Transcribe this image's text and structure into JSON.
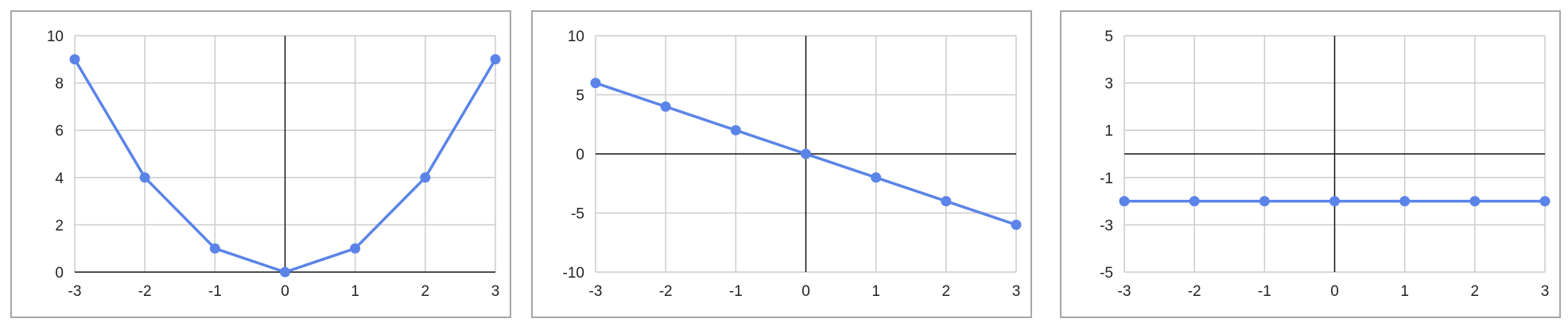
{
  "chart_data": [
    {
      "type": "line",
      "x": [
        -3,
        -2,
        -1,
        0,
        1,
        2,
        3
      ],
      "series": [
        {
          "values": [
            9,
            4,
            1,
            0,
            1,
            4,
            9
          ]
        }
      ],
      "xlim": [
        -3,
        3
      ],
      "ylim": [
        0,
        10
      ],
      "x_ticks": [
        -3,
        -2,
        -1,
        0,
        1,
        2,
        3
      ],
      "y_ticks": [
        0,
        2,
        4,
        6,
        8,
        10
      ],
      "grid": true,
      "color": "#5b84e8",
      "title": "",
      "xlabel": "",
      "ylabel": ""
    },
    {
      "type": "line",
      "x": [
        -3,
        -2,
        -1,
        0,
        1,
        2,
        3
      ],
      "series": [
        {
          "values": [
            6,
            4,
            2,
            0,
            -2,
            -4,
            -6
          ]
        }
      ],
      "xlim": [
        -3,
        3
      ],
      "ylim": [
        -10,
        10
      ],
      "x_ticks": [
        -3,
        -2,
        -1,
        0,
        1,
        2,
        3
      ],
      "y_ticks": [
        -10,
        -5,
        0,
        5,
        10
      ],
      "grid": true,
      "color": "#5b84e8",
      "title": "",
      "xlabel": "",
      "ylabel": ""
    },
    {
      "type": "line",
      "x": [
        -3,
        -2,
        -1,
        0,
        1,
        2,
        3
      ],
      "series": [
        {
          "values": [
            -2,
            -2,
            -2,
            -2,
            -2,
            -2,
            -2
          ]
        }
      ],
      "xlim": [
        -3,
        3
      ],
      "ylim": [
        -5,
        5
      ],
      "x_ticks": [
        -3,
        -2,
        -1,
        0,
        1,
        2,
        3
      ],
      "y_ticks": [
        -5,
        -3,
        -1,
        1,
        3,
        5
      ],
      "grid": true,
      "color": "#5b84e8",
      "title": "",
      "xlabel": "",
      "ylabel": ""
    }
  ]
}
